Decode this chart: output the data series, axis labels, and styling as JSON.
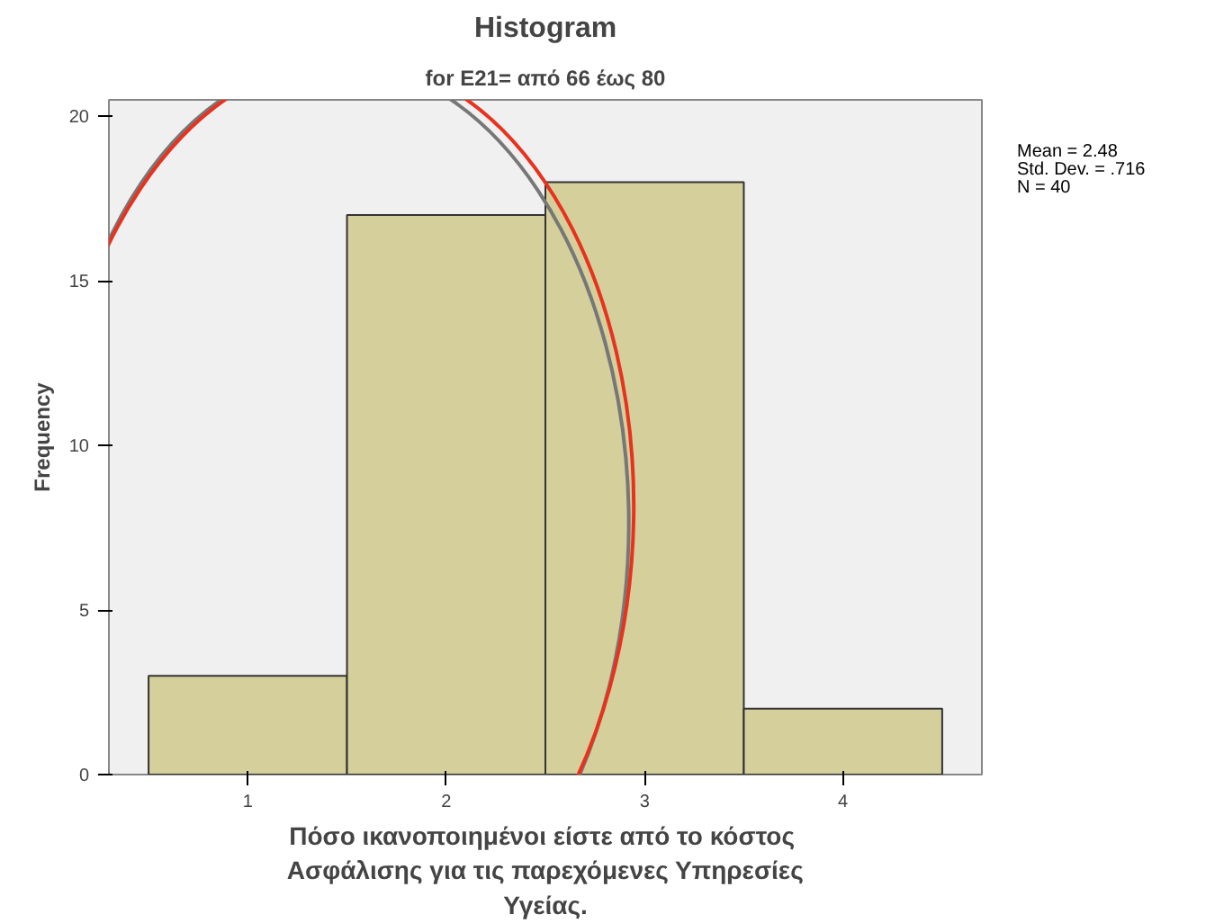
{
  "chart_data": {
    "type": "histogram",
    "title": "Histogram",
    "subtitle": "for E21= από 66 έως 80",
    "xlabel": "Πόσο ικανοποιημένοι είστε  από το κόστος\nΑσφάλισης για τις παρεχόμενες Υπηρεσίες\nΥγείας.",
    "ylabel": "Frequency",
    "annotations": [
      "Mean = 2.48",
      "Std. Dev. = .716",
      "N = 40"
    ],
    "bins": [
      0.5,
      1.5,
      2.5,
      3.5,
      4.5
    ],
    "values": [
      3,
      17,
      18,
      2
    ],
    "color": "#d4cf9b",
    "xlim": [
      0.3,
      4.7
    ],
    "ylim": [
      0,
      20.5
    ],
    "xticks": [
      1,
      2,
      3,
      4
    ],
    "yticks": [
      0,
      5,
      10,
      15,
      20
    ],
    "grid": false
  }
}
